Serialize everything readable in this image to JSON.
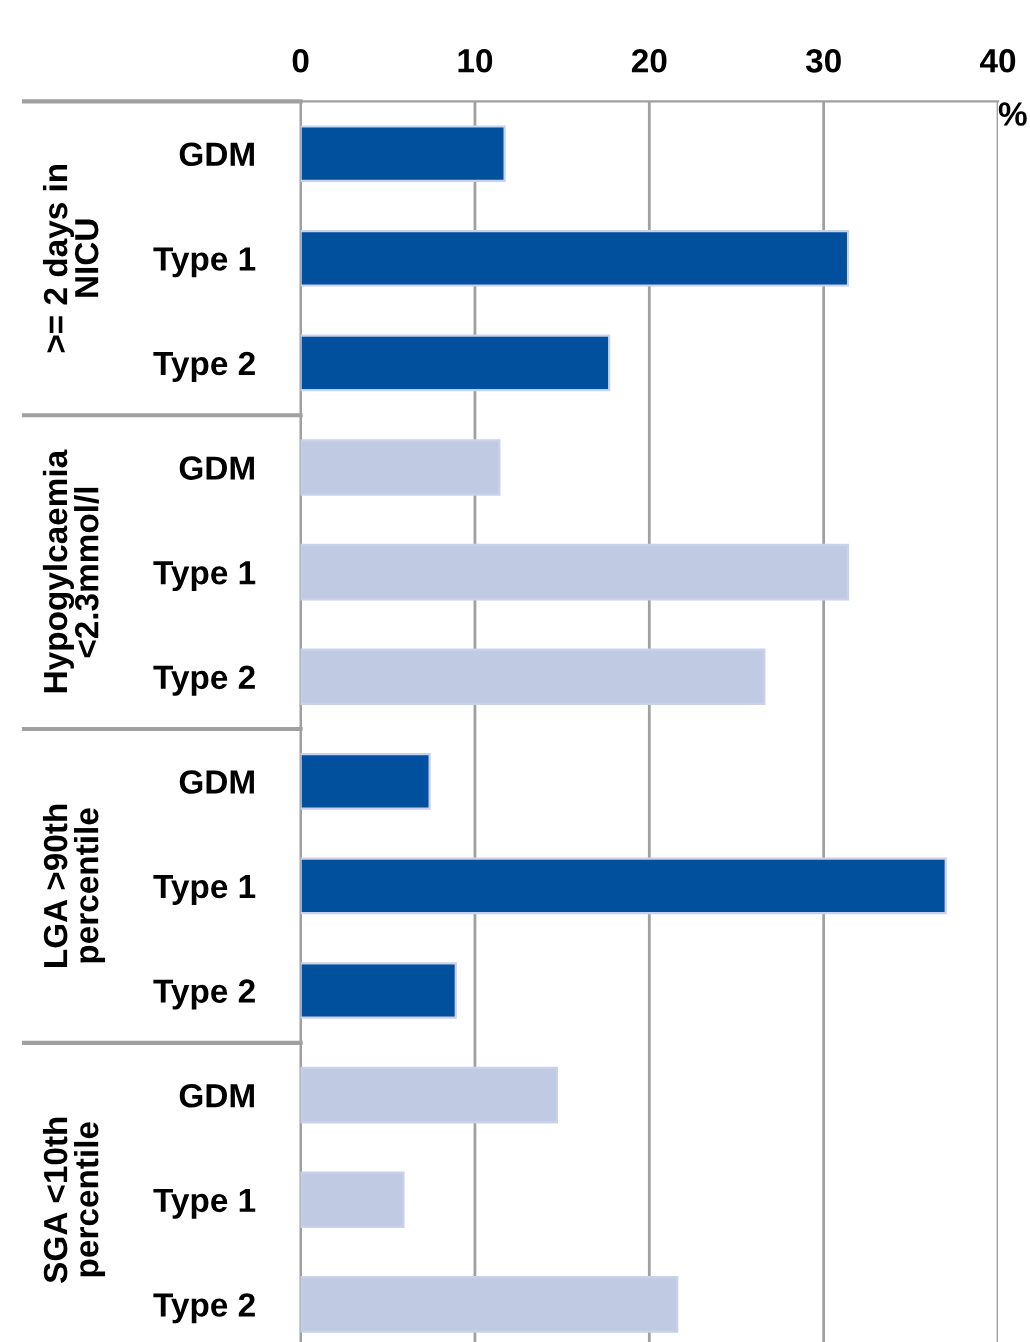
{
  "chart_data": {
    "type": "bar",
    "orientation": "horizontal",
    "xlabel": "%",
    "categories": [
      "GDM",
      "Type 1",
      "Type 2",
      "GDM",
      "Type 1",
      "Type 2",
      "GDM",
      "Type 1",
      "Type 2",
      "GDM",
      "Type 1",
      "Type 2"
    ],
    "values": [
      11.7,
      31.4,
      17.7,
      11.4,
      31.4,
      26.6,
      7.4,
      37.0,
      8.9,
      14.7,
      5.9,
      21.6
    ],
    "colors": [
      "#00509e",
      "#00509e",
      "#00509e",
      "#c0cae3",
      "#c0cae3",
      "#c0cae3",
      "#00509e",
      "#00509e",
      "#00509e",
      "#c0cae3",
      "#c0cae3",
      "#c0cae3"
    ],
    "xlim": [
      0,
      40
    ],
    "xticks": [
      0,
      10,
      20,
      30,
      40
    ],
    "grid": "x",
    "annotations": [
      ">= 2 days in\nNICU",
      "Hypogylcaemia\n<2.3mmol/l",
      "LGA >90th\npercentile",
      "SGA <10th\npercentile"
    ]
  }
}
